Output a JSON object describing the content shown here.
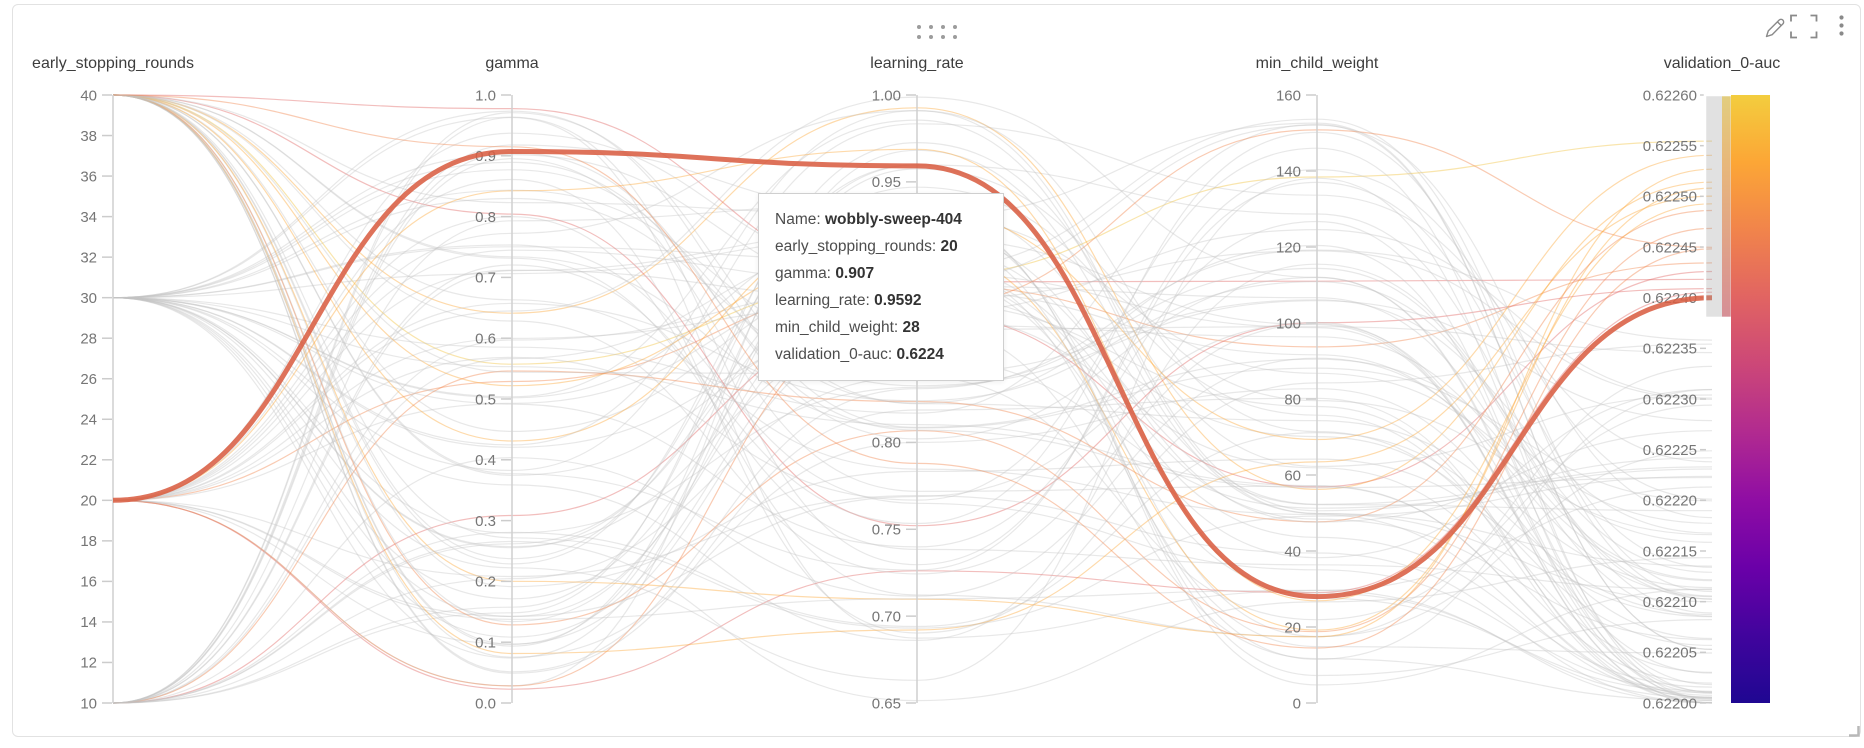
{
  "panel": {
    "header": {
      "drag_handle_icon": "drag-dots-icon",
      "edit_icon": "pencil-icon",
      "fullscreen_icon": "expand-icon",
      "menu_icon": "kebab-menu-icon"
    },
    "resize_handle_icon": "resize-grip-icon"
  },
  "chart_data": {
    "type": "parallel-coordinates",
    "axes": [
      {
        "name": "early_stopping_rounds",
        "range": [
          10,
          40
        ],
        "ticks": [
          "40",
          "38",
          "36",
          "34",
          "32",
          "30",
          "28",
          "26",
          "24",
          "22",
          "20",
          "18",
          "16",
          "14",
          "12",
          "10"
        ]
      },
      {
        "name": "gamma",
        "range": [
          0.0,
          1.0
        ],
        "ticks": [
          "1.0",
          "0.9",
          "0.8",
          "0.7",
          "0.6",
          "0.5",
          "0.4",
          "0.3",
          "0.2",
          "0.1",
          "0.0"
        ]
      },
      {
        "name": "learning_rate",
        "range": [
          0.65,
          1.0
        ],
        "ticks": [
          "1.00",
          "0.95",
          "0.90",
          "0.85",
          "0.80",
          "0.75",
          "0.70",
          "0.65"
        ]
      },
      {
        "name": "min_child_weight",
        "range": [
          0,
          160
        ],
        "ticks": [
          "160",
          "140",
          "120",
          "100",
          "80",
          "60",
          "40",
          "20",
          "0"
        ]
      },
      {
        "name": "validation_0-auc",
        "range": [
          0.622,
          0.6226
        ],
        "ticks": [
          "0.62260",
          "0.62255",
          "0.62250",
          "0.62245",
          "0.62240",
          "0.62235",
          "0.62230",
          "0.62225",
          "0.62220",
          "0.62215",
          "0.62210",
          "0.62205",
          "0.62200"
        ]
      }
    ],
    "highlighted_run": {
      "name": "wobbly-sweep-404",
      "values": [
        20,
        0.907,
        0.9592,
        28,
        0.6224
      ],
      "color": "#d95f43"
    },
    "color_axis": "validation_0-auc",
    "colorbar": {
      "stops": [
        "#f3cd3e",
        "#fca636",
        "#f1844b",
        "#e16462",
        "#cc4778",
        "#b12a90",
        "#8f0da4",
        "#6a00a8",
        "#41049d",
        "#1f0792"
      ]
    },
    "brush": {
      "axis": "validation_0-auc",
      "from": 0.62238,
      "to": 0.6226
    },
    "background_lines": {
      "count": 95,
      "seed": 11,
      "esr_values": [
        40,
        30,
        20,
        10
      ],
      "gray_color": "#c2c2c2",
      "gray_opacity": 0.38,
      "colored_opacity": 0.42,
      "colored_palette": [
        "#e16462",
        "#f1844b",
        "#fca636",
        "#f0c23c"
      ]
    }
  },
  "tooltip": {
    "rows": [
      {
        "label": "Name",
        "value": "wobbly-sweep-404"
      },
      {
        "label": "early_stopping_rounds",
        "value": "20"
      },
      {
        "label": "gamma",
        "value": "0.907"
      },
      {
        "label": "learning_rate",
        "value": "0.9592"
      },
      {
        "label": "min_child_weight",
        "value": "28"
      },
      {
        "label": "validation_0-auc",
        "value": "0.6224"
      }
    ]
  }
}
